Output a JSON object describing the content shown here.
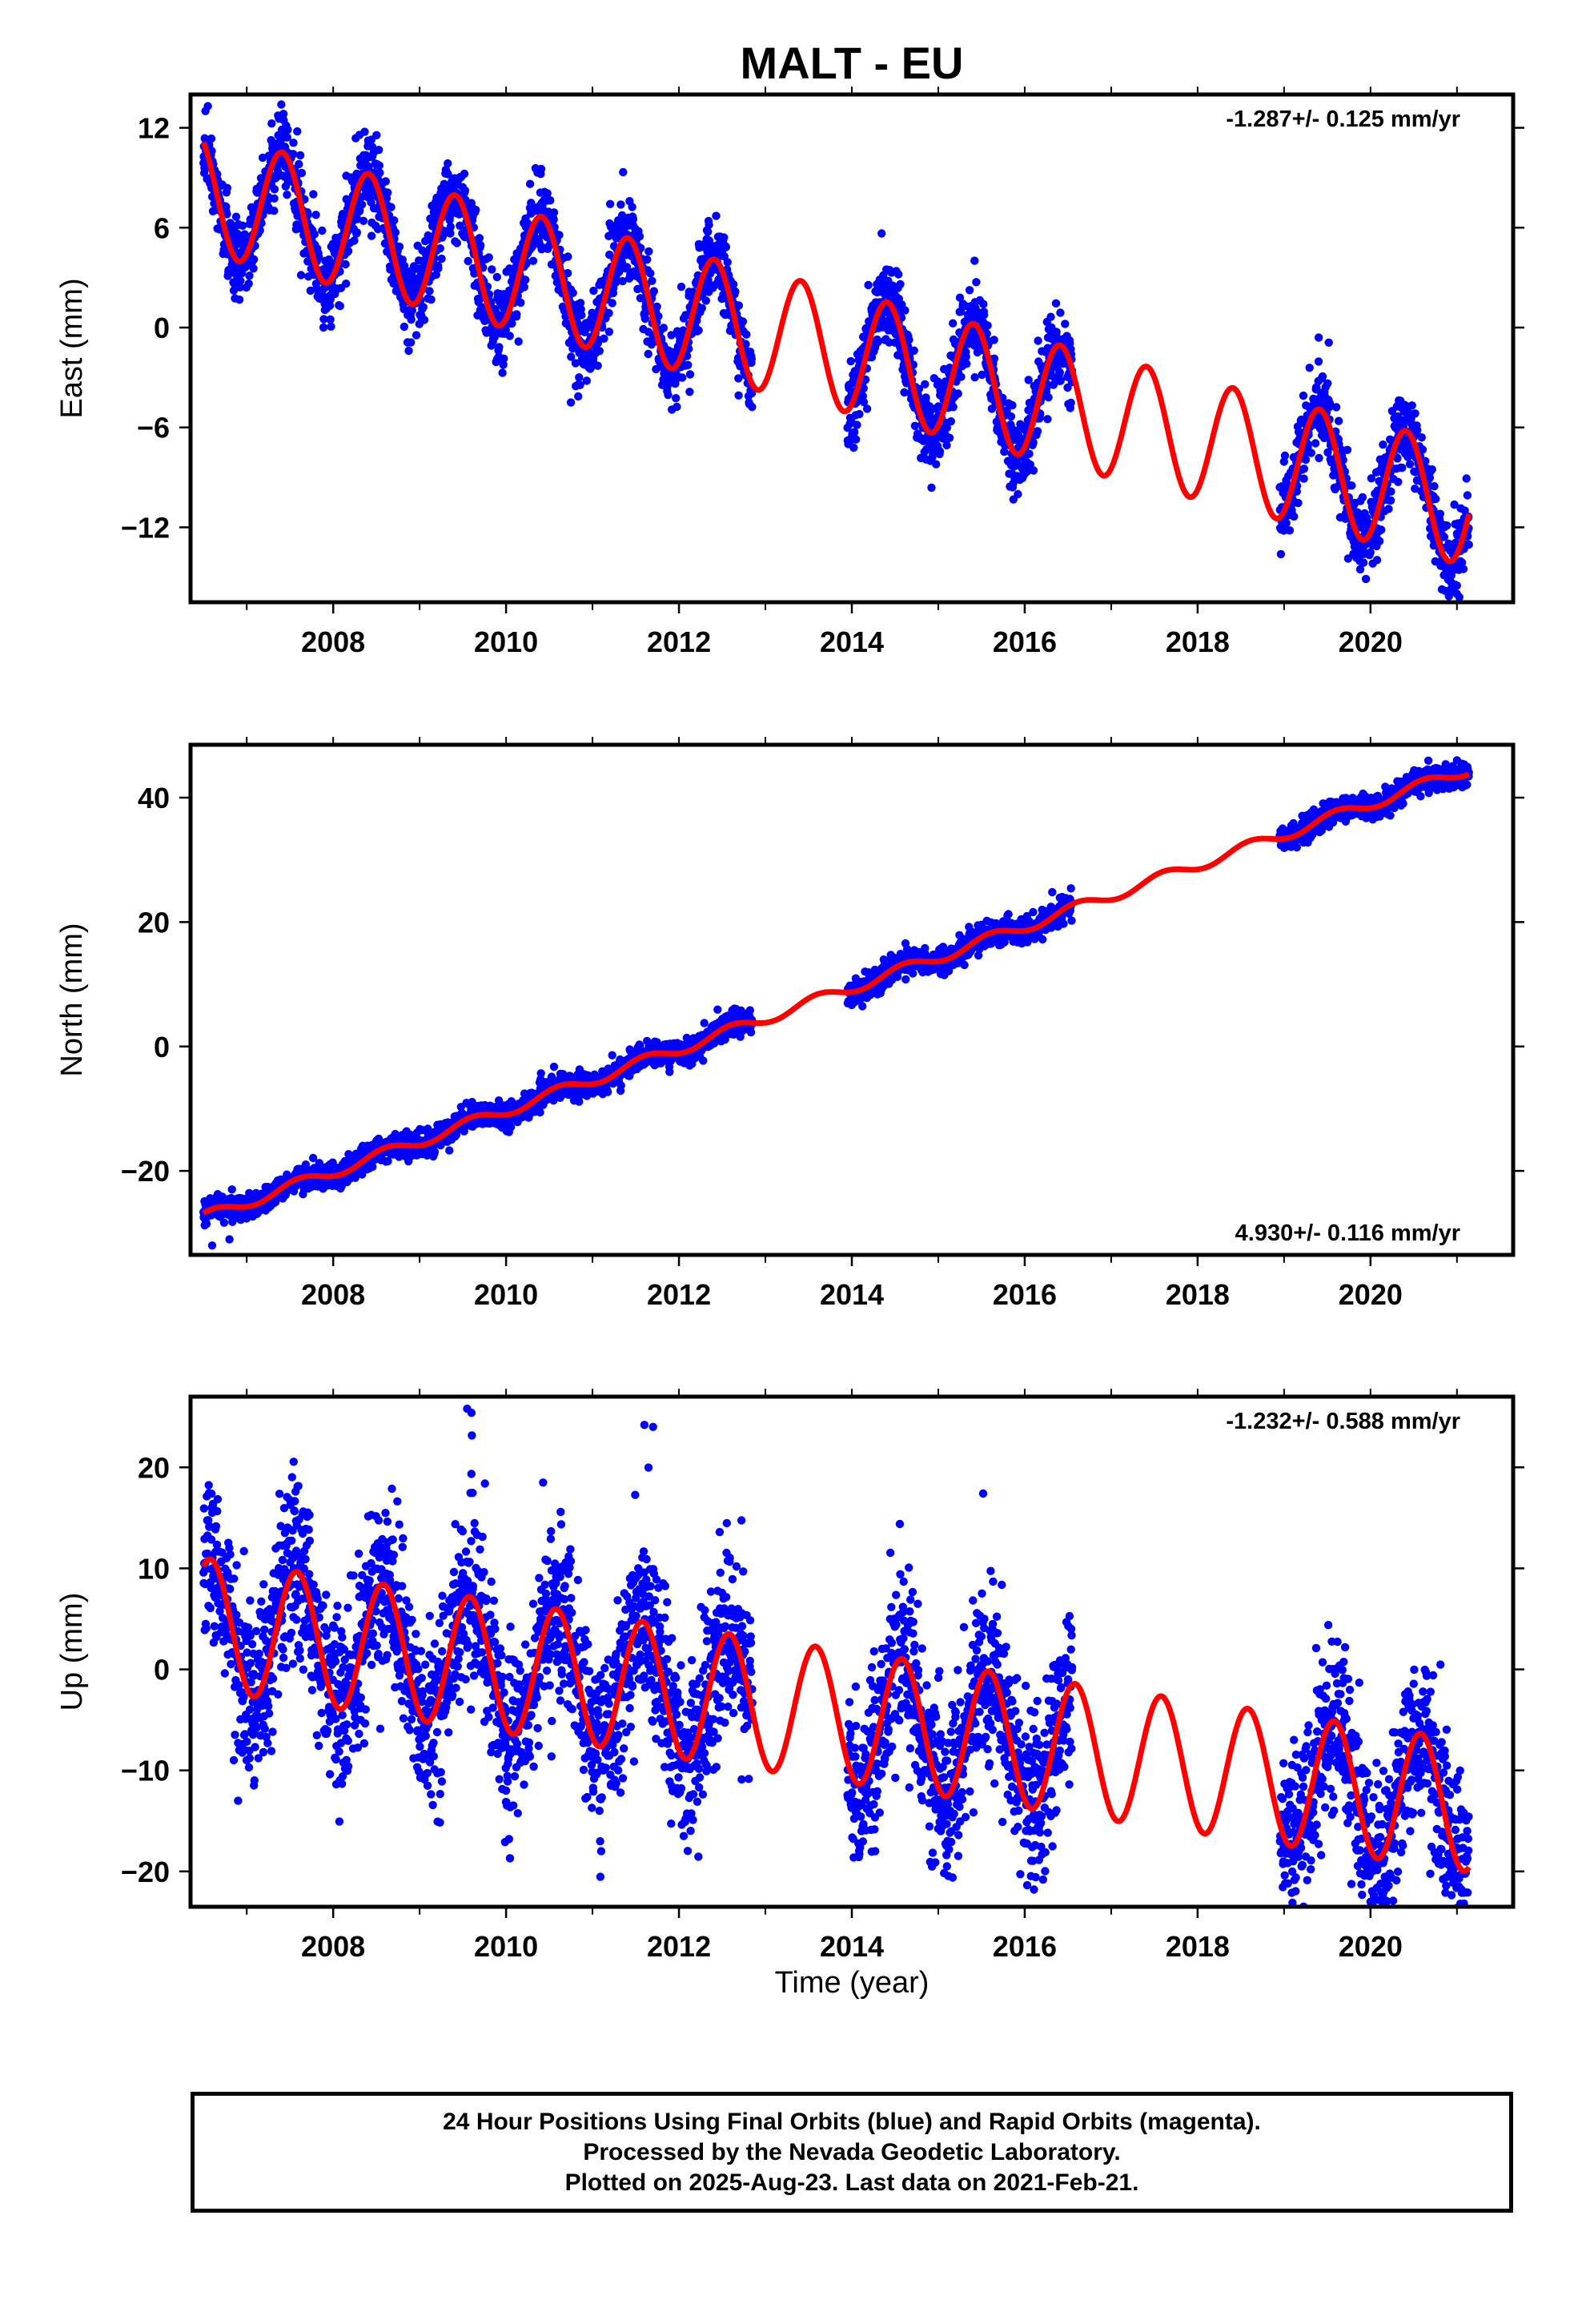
{
  "chart_data": {
    "type": "scatter",
    "title": "MALT - EU",
    "xlabel": "Time (year)",
    "xlim": [
      2006.35,
      2021.65
    ],
    "xticks": [
      2008,
      2010,
      2012,
      2014,
      2016,
      2018,
      2020
    ],
    "xtick_labels": [
      "2008",
      "2010",
      "2012",
      "2014",
      "2016",
      "2018",
      "2020"
    ],
    "grid": false,
    "data_segments": [
      [
        2006.5,
        2012.85
      ],
      [
        2013.95,
        2016.55
      ],
      [
        2018.95,
        2021.14
      ]
    ],
    "colors": {
      "points": "#0000ff",
      "model": "#ff0000",
      "frame": "#000000"
    },
    "panels": [
      {
        "key": "east",
        "ylabel": "East (mm)",
        "ylim": [
          -16.5,
          14
        ],
        "yticks": [
          12,
          6,
          0,
          -6,
          -12
        ],
        "ytick_labels": [
          "12",
          "6",
          "0",
          "−6",
          "−12"
        ],
        "rate_label": "-1.287+/- 0.125 mm/yr",
        "rate_position": "top-right",
        "model": {
          "intercept": 8.1,
          "slope": -1.287,
          "amplitude": 3.6,
          "phase_year": 2007.41,
          "noise": 1.15,
          "t0": 2006.5
        },
        "outliers": [
          [
            2006.55,
            13.3
          ],
          [
            2007.4,
            13.4
          ],
          [
            2010.75,
            -4.5
          ],
          [
            2019.4,
            -0.6
          ],
          [
            2021.0,
            -15.5
          ]
        ]
      },
      {
        "key": "north",
        "ylabel": "North (mm)",
        "ylim": [
          -33.5,
          48.5
        ],
        "yticks": [
          40,
          20,
          0,
          -20
        ],
        "ytick_labels": [
          "40",
          "20",
          "0",
          "−20"
        ],
        "rate_label": "4.930+/- 0.116 mm/yr",
        "rate_position": "bottom-right",
        "model": {
          "intercept": -27.5,
          "slope": 4.93,
          "amplitude": 0.9,
          "phase_year": 2006.6,
          "noise": 0.95,
          "t0": 2006.5
        },
        "outliers": [
          [
            2006.6,
            -32.0
          ],
          [
            2006.8,
            -31.0
          ],
          [
            2021.0,
            46.0
          ]
        ]
      },
      {
        "key": "up",
        "ylabel": "Up (mm)",
        "ylim": [
          -23.5,
          27
        ],
        "yticks": [
          20,
          10,
          0,
          -10,
          -20
        ],
        "ytick_labels": [
          "20",
          "10",
          "0",
          "−10",
          "−20"
        ],
        "rate_label": "-1.232+/- 0.588 mm/yr",
        "rate_position": "top-right",
        "model": {
          "intercept": 4.5,
          "slope": -1.232,
          "amplitude": 6.5,
          "phase_year": 2006.58,
          "noise": 4.2,
          "t0": 2006.5
        },
        "outliers": [
          [
            2009.55,
            25.8
          ],
          [
            2009.6,
            25.4
          ],
          [
            2011.6,
            24.2
          ],
          [
            2011.7,
            24.0
          ],
          [
            2020.0,
            -23.0
          ],
          [
            2006.9,
            -13.0
          ],
          [
            2010.0,
            -12.0
          ],
          [
            2011.1,
            -18.0
          ],
          [
            2015.1,
            -19.5
          ]
        ]
      }
    ]
  },
  "caption": {
    "line1": "24 Hour Positions Using Final Orbits (blue) and Rapid Orbits (magenta).",
    "line2": "Processed by the Nevada Geodetic Laboratory.",
    "line3": "Plotted on 2025-Aug-23. Last data on 2021-Feb-21."
  }
}
